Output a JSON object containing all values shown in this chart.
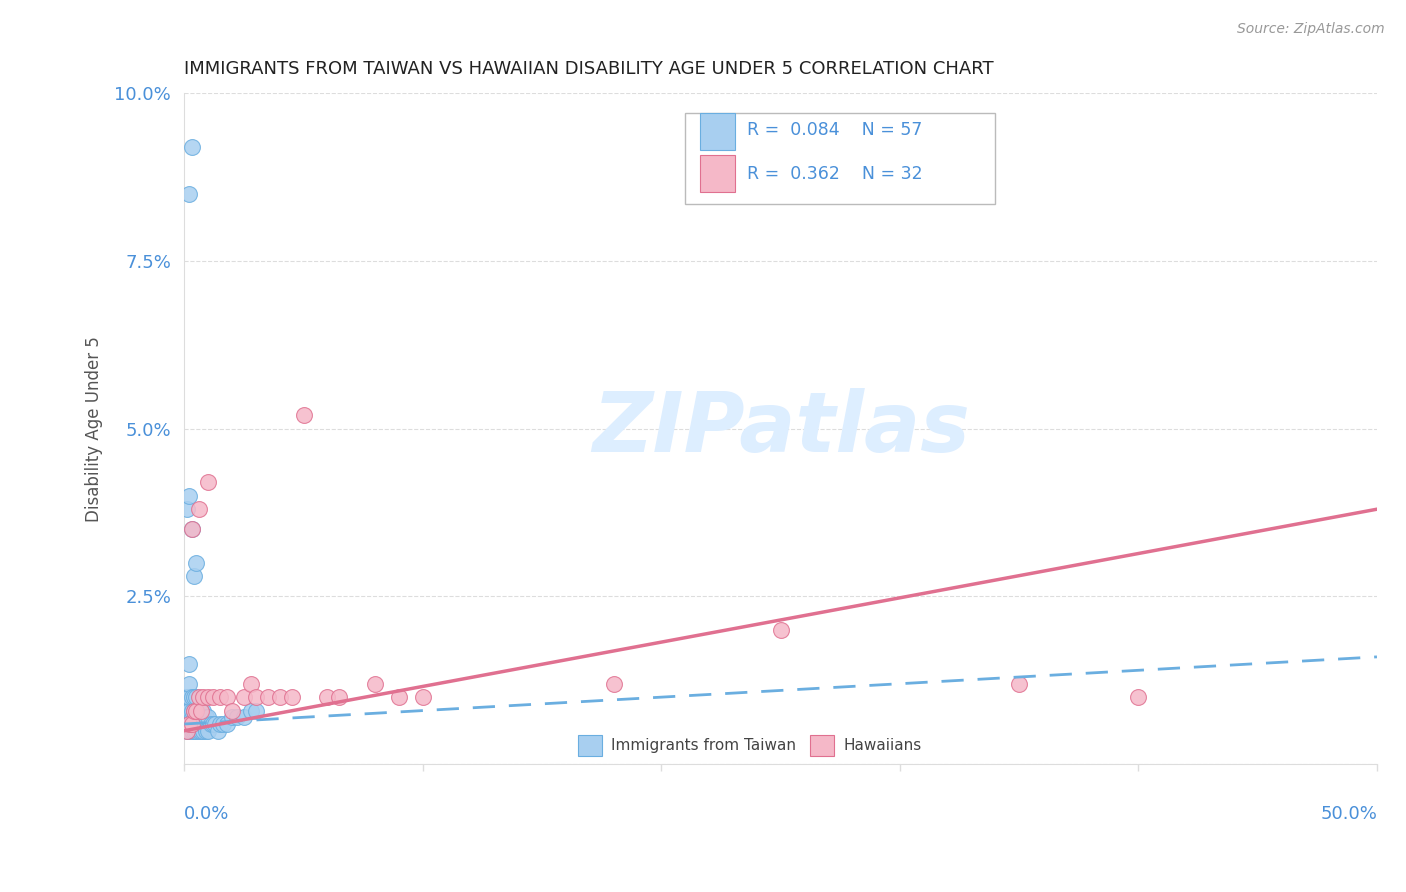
{
  "title": "IMMIGRANTS FROM TAIWAN VS HAWAIIAN DISABILITY AGE UNDER 5 CORRELATION CHART",
  "source": "Source: ZipAtlas.com",
  "ylabel": "Disability Age Under 5",
  "xlim": [
    0,
    0.5
  ],
  "ylim": [
    0,
    0.1
  ],
  "color_blue": "#a8cff0",
  "color_blue_edge": "#6aaee0",
  "color_pink": "#f5b8c8",
  "color_pink_edge": "#e07090",
  "color_blue_line": "#6aaee0",
  "color_pink_line": "#e07090",
  "color_text_blue": "#4a90d9",
  "color_grid": "#dddddd",
  "watermark_color": "#ddeeff",
  "taiwan_x": [
    0.001,
    0.001,
    0.001,
    0.001,
    0.001,
    0.002,
    0.002,
    0.002,
    0.002,
    0.002,
    0.002,
    0.002,
    0.003,
    0.003,
    0.003,
    0.003,
    0.003,
    0.004,
    0.004,
    0.004,
    0.004,
    0.005,
    0.005,
    0.005,
    0.005,
    0.006,
    0.006,
    0.006,
    0.007,
    0.007,
    0.007,
    0.008,
    0.008,
    0.008,
    0.009,
    0.009,
    0.01,
    0.01,
    0.011,
    0.012,
    0.013,
    0.014,
    0.015,
    0.016,
    0.018,
    0.02,
    0.022,
    0.025,
    0.028,
    0.03,
    0.001,
    0.002,
    0.003,
    0.004,
    0.005,
    0.002,
    0.003
  ],
  "taiwan_y": [
    0.005,
    0.006,
    0.007,
    0.008,
    0.01,
    0.005,
    0.006,
    0.007,
    0.008,
    0.01,
    0.012,
    0.015,
    0.005,
    0.006,
    0.007,
    0.008,
    0.01,
    0.005,
    0.006,
    0.008,
    0.01,
    0.005,
    0.006,
    0.007,
    0.01,
    0.005,
    0.006,
    0.008,
    0.005,
    0.006,
    0.008,
    0.005,
    0.006,
    0.008,
    0.005,
    0.007,
    0.005,
    0.007,
    0.006,
    0.006,
    0.006,
    0.005,
    0.006,
    0.006,
    0.006,
    0.007,
    0.007,
    0.007,
    0.008,
    0.008,
    0.038,
    0.04,
    0.035,
    0.028,
    0.03,
    0.085,
    0.092
  ],
  "hawaii_x": [
    0.001,
    0.002,
    0.003,
    0.004,
    0.005,
    0.006,
    0.007,
    0.008,
    0.01,
    0.012,
    0.015,
    0.018,
    0.02,
    0.025,
    0.028,
    0.03,
    0.035,
    0.04,
    0.045,
    0.05,
    0.06,
    0.065,
    0.08,
    0.09,
    0.1,
    0.18,
    0.25,
    0.35,
    0.4,
    0.003,
    0.006,
    0.01
  ],
  "hawaii_y": [
    0.005,
    0.006,
    0.006,
    0.008,
    0.008,
    0.01,
    0.008,
    0.01,
    0.01,
    0.01,
    0.01,
    0.01,
    0.008,
    0.01,
    0.012,
    0.01,
    0.01,
    0.01,
    0.01,
    0.052,
    0.01,
    0.01,
    0.012,
    0.01,
    0.01,
    0.012,
    0.02,
    0.012,
    0.01,
    0.035,
    0.038,
    0.042
  ],
  "tw_line_x": [
    0.0,
    0.5
  ],
  "tw_line_y": [
    0.006,
    0.016
  ],
  "hw_line_x": [
    0.0,
    0.5
  ],
  "hw_line_y": [
    0.005,
    0.038
  ]
}
